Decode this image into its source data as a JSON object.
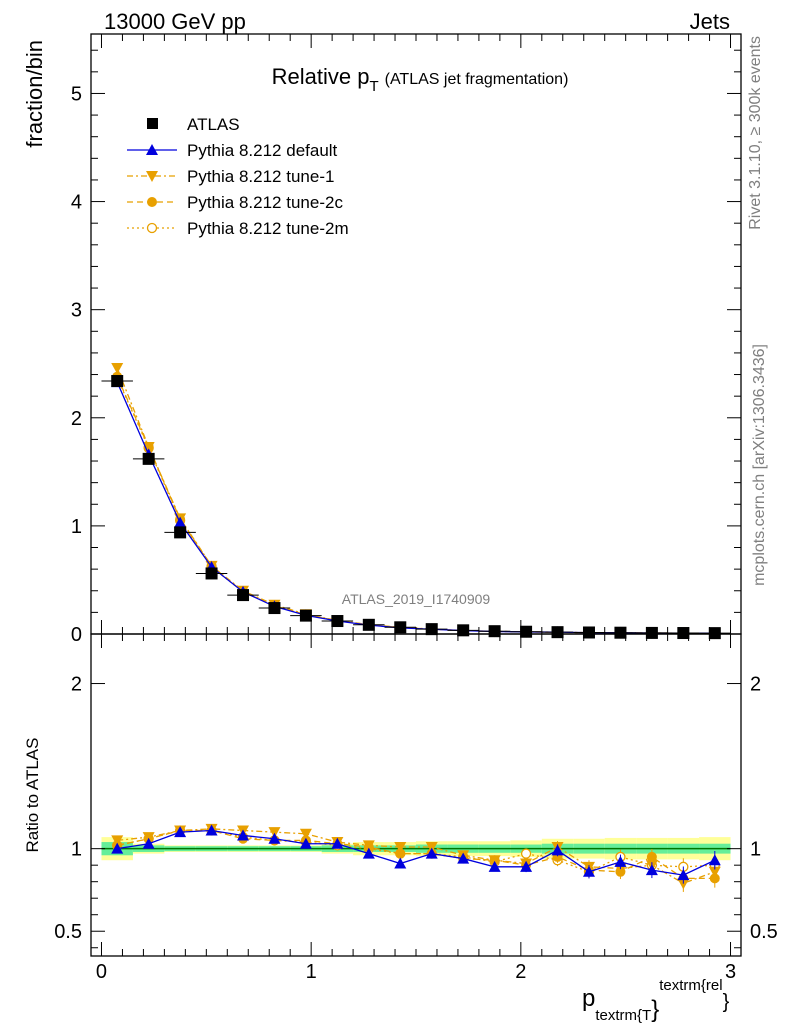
{
  "header": {
    "energy_label": "13000 GeV pp",
    "process_label": "Jets"
  },
  "side_labels": {
    "rivet": "Rivet 3.1.10, ≥ 300k events",
    "mcplots": "mcplots.cern.ch [arXiv:1306.3436]"
  },
  "watermark": "ATLAS_2019_I1740909",
  "colors": {
    "atlas": "#000000",
    "default": "#0000dd",
    "tunes": "#e8a000",
    "band_inner": "#66ee99",
    "band_outer": "#ffff99",
    "ref_line": "#007700"
  },
  "chart_data": [
    {
      "type": "scatter",
      "title": "Relative p_T",
      "title_main": "Relative p",
      "title_sub": "T",
      "title_note": "(ATLAS jet fragmentation)",
      "ylabel": "fraction/bin",
      "xlim": [
        -0.05,
        3.05
      ],
      "ylim": [
        0,
        5.55
      ],
      "yticks": [
        0,
        1,
        2,
        3,
        4,
        5
      ],
      "ytick_labels": [
        "0",
        "1",
        "2",
        "3",
        "4",
        "5"
      ],
      "legend_position": "top-left",
      "x": [
        0.075,
        0.225,
        0.375,
        0.525,
        0.675,
        0.825,
        0.975,
        1.125,
        1.275,
        1.425,
        1.575,
        1.725,
        1.875,
        2.025,
        2.175,
        2.325,
        2.475,
        2.625,
        2.775,
        2.925
      ],
      "series": [
        {
          "name": "ATLAS",
          "marker": "square",
          "values": [
            2.34,
            1.62,
            0.94,
            0.56,
            0.36,
            0.24,
            0.17,
            0.12,
            0.085,
            0.062,
            0.045,
            0.034,
            0.026,
            0.021,
            0.017,
            0.014,
            0.012,
            0.01,
            0.009,
            0.008
          ]
        },
        {
          "name": "Pythia 8.212 default",
          "marker": "triangle-up",
          "values": [
            2.33,
            1.66,
            1.03,
            0.62,
            0.39,
            0.255,
            0.172,
            0.12,
            0.082,
            0.057,
            0.044,
            0.032,
            0.023,
            0.019,
            0.017,
            0.012,
            0.011,
            0.009,
            0.0078,
            0.0074
          ]
        },
        {
          "name": "Pythia 8.212 tune-1",
          "marker": "triangle-down",
          "values": [
            2.46,
            1.73,
            1.07,
            0.63,
            0.4,
            0.27,
            0.183,
            0.125,
            0.087,
            0.062,
            0.046,
            0.033,
            0.024,
            0.02,
            0.017,
            0.013,
            0.011,
            0.009,
            0.0078,
            0.0074
          ]
        },
        {
          "name": "Pythia 8.212 tune-2c",
          "marker": "circle",
          "values": [
            2.38,
            1.73,
            1.06,
            0.63,
            0.39,
            0.26,
            0.178,
            0.123,
            0.086,
            0.06,
            0.044,
            0.032,
            0.024,
            0.019,
            0.016,
            0.012,
            0.0105,
            0.009,
            0.0075,
            0.0066
          ]
        },
        {
          "name": "Pythia 8.212 tune-2m",
          "marker": "circle-open",
          "values": [
            2.37,
            1.72,
            1.05,
            0.62,
            0.39,
            0.26,
            0.176,
            0.122,
            0.085,
            0.06,
            0.044,
            0.033,
            0.024,
            0.0205,
            0.016,
            0.012,
            0.0115,
            0.009,
            0.0081,
            0.0072
          ]
        }
      ]
    },
    {
      "type": "scatter",
      "title": "Ratio to ATLAS",
      "ylabel": "Ratio to ATLAS",
      "xlabel": "p_textrm{T}^textrm{rel}",
      "xlabel_main": "p",
      "xlabel_sub": "textrm{T",
      "xlabel_brace_sub": "}",
      "xlabel_sup": "textrm{rel",
      "xlabel_brace_sup": "}",
      "xlim": [
        -0.05,
        3.05
      ],
      "ylim": [
        0.35,
        2.3
      ],
      "yticks": [
        0.5,
        1,
        2
      ],
      "ytick_labels": [
        "0.5",
        "1",
        "2"
      ],
      "xticks": [
        0,
        1,
        2,
        3
      ],
      "xtick_labels": [
        "0",
        "1",
        "2",
        "3"
      ],
      "x": [
        0.075,
        0.225,
        0.375,
        0.525,
        0.675,
        0.825,
        0.975,
        1.125,
        1.275,
        1.425,
        1.575,
        1.725,
        1.875,
        2.025,
        2.175,
        2.325,
        2.475,
        2.625,
        2.775,
        2.925
      ],
      "band_inner_halfwidth": [
        0.04,
        0.02,
        0.015,
        0.015,
        0.015,
        0.015,
        0.015,
        0.02,
        0.02,
        0.02,
        0.025,
        0.025,
        0.025,
        0.025,
        0.03,
        0.03,
        0.03,
        0.03,
        0.03,
        0.03
      ],
      "band_outer_halfwidth": [
        0.07,
        0.03,
        0.02,
        0.02,
        0.02,
        0.02,
        0.02,
        0.03,
        0.04,
        0.04,
        0.045,
        0.045,
        0.045,
        0.05,
        0.06,
        0.06,
        0.065,
        0.065,
        0.065,
        0.07
      ],
      "series": [
        {
          "name": "Pythia 8.212 default",
          "marker": "triangle-up",
          "values": [
            1.0,
            1.03,
            1.1,
            1.11,
            1.08,
            1.06,
            1.03,
            1.03,
            0.97,
            0.91,
            0.97,
            0.94,
            0.89,
            0.89,
            0.99,
            0.86,
            0.92,
            0.87,
            0.84,
            0.93
          ]
        },
        {
          "name": "Pythia 8.212 tune-1",
          "marker": "triangle-down",
          "values": [
            1.05,
            1.07,
            1.11,
            1.12,
            1.11,
            1.1,
            1.09,
            1.04,
            1.02,
            1.01,
            1.01,
            0.96,
            0.93,
            0.91,
            1.01,
            0.89,
            0.88,
            0.9,
            0.79,
            0.86
          ]
        },
        {
          "name": "Pythia 8.212 tune-2c",
          "marker": "circle",
          "values": [
            1.02,
            1.06,
            1.11,
            1.11,
            1.06,
            1.05,
            1.05,
            1.03,
            1.01,
            0.97,
            0.97,
            0.94,
            0.93,
            0.9,
            0.95,
            0.87,
            0.86,
            0.95,
            0.82,
            0.82
          ]
        },
        {
          "name": "Pythia 8.212 tune-2m",
          "marker": "circle-open",
          "values": [
            1.02,
            1.06,
            1.11,
            1.11,
            1.07,
            1.05,
            1.04,
            1.02,
            1.0,
            0.97,
            0.97,
            0.95,
            0.92,
            0.97,
            0.93,
            0.86,
            0.95,
            0.9,
            0.89,
            0.9
          ]
        }
      ]
    }
  ]
}
